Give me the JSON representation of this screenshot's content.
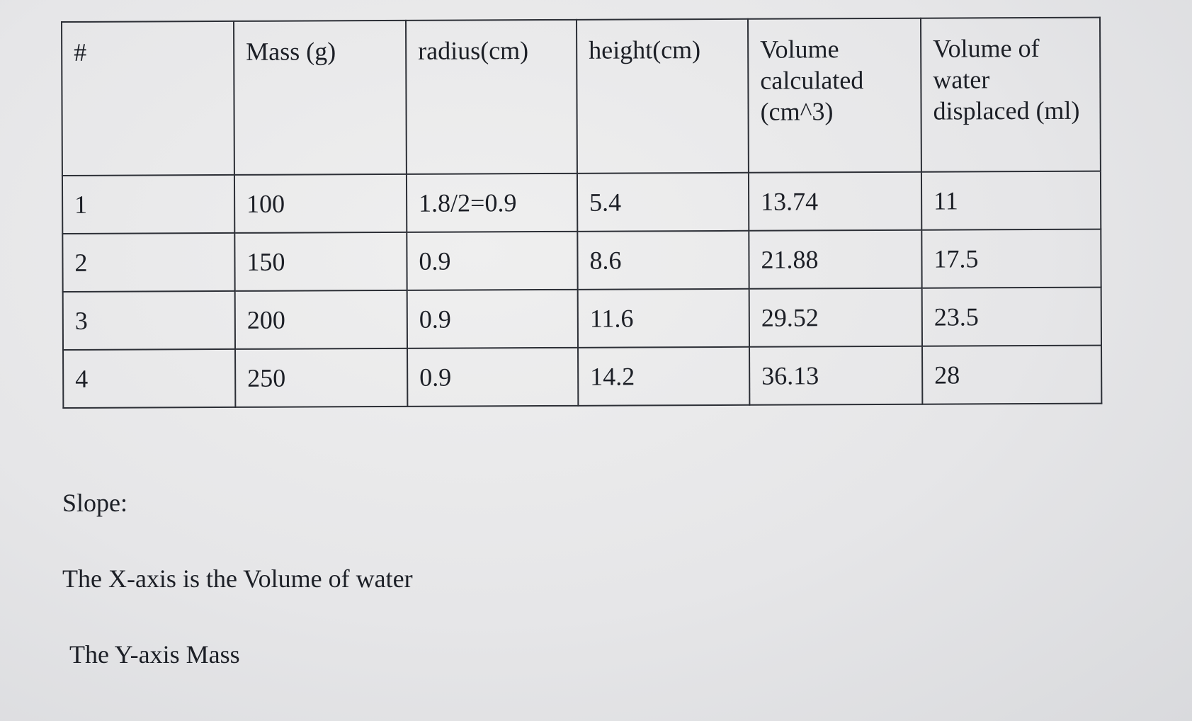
{
  "table": {
    "headers": [
      "#",
      "Mass (g)",
      "radius(cm)",
      "height(cm)",
      "Volume calculated (cm^3)",
      "Volume of water displaced (ml)"
    ],
    "rows": [
      [
        "1",
        "100",
        "1.8/2=0.9",
        "5.4",
        "13.74",
        "11"
      ],
      [
        "2",
        "150",
        "0.9",
        "8.6",
        "21.88",
        "17.5"
      ],
      [
        "3",
        "200",
        "0.9",
        "11.6",
        "29.52",
        "23.5"
      ],
      [
        "4",
        "250",
        "0.9",
        "14.2",
        "36.13",
        "28"
      ]
    ]
  },
  "notes": {
    "slope_label": "Slope:",
    "x_axis": "The X-axis is the Volume of water",
    "y_axis": "The Y-axis Mass"
  }
}
